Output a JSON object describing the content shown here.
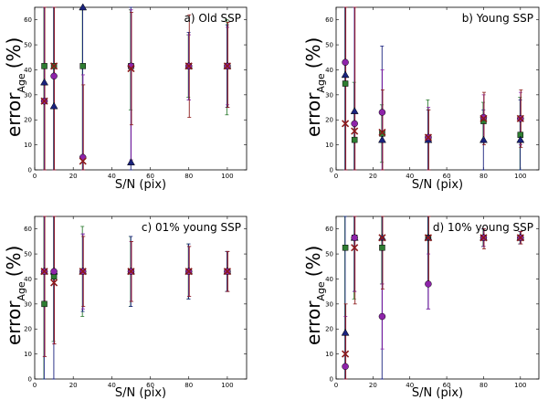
{
  "figure": {
    "x_axis_label": "S/N (pix)",
    "y_axis_label_main": "error",
    "y_axis_label_sub": "Age",
    "y_axis_label_unit": "(%)"
  },
  "chart_data": [
    {
      "type": "scatter",
      "title": "a) Old SSP",
      "xlabel": "S/N (pix)",
      "ylabel": "error_Age (%)",
      "xlim": [
        0,
        110
      ],
      "ylim": [
        0,
        65
      ],
      "xticks": [
        0,
        20,
        40,
        60,
        80,
        100
      ],
      "yticks": [
        0,
        10,
        20,
        30,
        40,
        50,
        60
      ],
      "series": [
        {
          "name": "green squares",
          "marker": "square",
          "color": "#2e7d32",
          "points": [
            [
              5,
              41.5,
              0,
              65
            ],
            [
              10,
              41.5,
              0,
              65
            ],
            [
              25,
              41.5,
              0,
              65
            ],
            [
              50,
              41.5,
              24,
              64
            ],
            [
              80,
              41.5,
              29,
              54
            ],
            [
              100,
              41.5,
              22,
              60
            ]
          ]
        },
        {
          "name": "blue triangles",
          "marker": "triangle",
          "color": "#1a237e",
          "points": [
            [
              5,
              35,
              0,
              65
            ],
            [
              10,
              25.5,
              0,
              65
            ],
            [
              25,
              65,
              0,
              65
            ],
            [
              50,
              3,
              0,
              65
            ],
            [
              80,
              41.5,
              28,
              55
            ],
            [
              100,
              41.5,
              25,
              58
            ]
          ]
        },
        {
          "name": "magenta circles",
          "marker": "circle",
          "color": "#8e24aa",
          "points": [
            [
              5,
              27.5,
              0,
              65
            ],
            [
              10,
              37.5,
              0,
              65
            ],
            [
              25,
              5,
              0,
              38
            ],
            [
              50,
              41.5,
              4,
              64
            ],
            [
              80,
              41.5,
              28,
              54
            ],
            [
              100,
              41.5,
              26,
              57
            ]
          ]
        },
        {
          "name": "red crosses",
          "marker": "x",
          "color": "#8b1a1a",
          "points": [
            [
              5,
              27.5,
              0,
              65
            ],
            [
              10,
              41.5,
              0,
              65
            ],
            [
              25,
              3.5,
              0,
              34
            ],
            [
              50,
              40.5,
              18,
              63
            ],
            [
              80,
              41.5,
              21,
              62
            ],
            [
              100,
              41.5,
              25,
              59
            ]
          ]
        }
      ]
    },
    {
      "type": "scatter",
      "title": "b) Young SSP",
      "xlabel": "S/N (pix)",
      "ylabel": "error_Age (%)",
      "xlim": [
        0,
        110
      ],
      "ylim": [
        0,
        65
      ],
      "xticks": [
        0,
        20,
        40,
        60,
        80,
        100
      ],
      "yticks": [
        0,
        10,
        20,
        30,
        40,
        50,
        60
      ],
      "series": [
        {
          "name": "green squares",
          "marker": "square",
          "color": "#2e7d32",
          "points": [
            [
              5,
              34.5,
              0,
              65
            ],
            [
              10,
              12,
              0,
              35
            ],
            [
              25,
              14.5,
              3,
              26
            ],
            [
              50,
              12.5,
              0,
              28
            ],
            [
              80,
              19.5,
              12,
              27
            ],
            [
              100,
              14,
              0,
              29
            ]
          ]
        },
        {
          "name": "blue triangles",
          "marker": "triangle",
          "color": "#1a237e",
          "points": [
            [
              5,
              38,
              0,
              65
            ],
            [
              10,
              23.5,
              0,
              65
            ],
            [
              25,
              12,
              0,
              49.5
            ],
            [
              50,
              12,
              0,
              24
            ],
            [
              80,
              12,
              0,
              24
            ],
            [
              100,
              12,
              0,
              28
            ]
          ]
        },
        {
          "name": "magenta circles",
          "marker": "circle",
          "color": "#8e24aa",
          "points": [
            [
              5,
              43,
              0,
              65
            ],
            [
              10,
              18.5,
              0,
              65
            ],
            [
              25,
              23,
              0,
              40
            ],
            [
              50,
              13,
              0,
              25
            ],
            [
              80,
              21,
              12,
              30
            ],
            [
              100,
              20.5,
              10,
              31
            ]
          ]
        },
        {
          "name": "red crosses",
          "marker": "x",
          "color": "#8b1a1a",
          "points": [
            [
              5,
              18.5,
              0,
              65
            ],
            [
              10,
              15.5,
              0,
              65
            ],
            [
              25,
              15,
              0,
              32
            ],
            [
              50,
              13,
              0,
              24
            ],
            [
              80,
              20.5,
              10,
              31
            ],
            [
              100,
              20.5,
              9,
              32
            ]
          ]
        }
      ]
    },
    {
      "type": "scatter",
      "title": "c) 01% young SSP",
      "xlabel": "S/N (pix)",
      "ylabel": "error_Age (%)",
      "xlim": [
        0,
        110
      ],
      "ylim": [
        0,
        65
      ],
      "xticks": [
        0,
        20,
        40,
        60,
        80,
        100
      ],
      "yticks": [
        0,
        10,
        20,
        30,
        40,
        50,
        60
      ],
      "series": [
        {
          "name": "green squares",
          "marker": "square",
          "color": "#2e7d32",
          "points": [
            [
              5,
              30,
              0,
              65
            ],
            [
              10,
              41,
              15,
              65
            ],
            [
              25,
              43,
              25,
              61
            ],
            [
              50,
              43,
              29,
              57
            ],
            [
              80,
              43,
              32,
              54
            ],
            [
              100,
              43,
              35,
              51
            ]
          ]
        },
        {
          "name": "blue triangles",
          "marker": "triangle",
          "color": "#1a237e",
          "points": [
            [
              5,
              43,
              0,
              65
            ],
            [
              10,
              43,
              0,
              65
            ],
            [
              25,
              43,
              27,
              58
            ],
            [
              50,
              43,
              29,
              57
            ],
            [
              80,
              43,
              32,
              54
            ],
            [
              100,
              43,
              35,
              51
            ]
          ]
        },
        {
          "name": "magenta circles",
          "marker": "circle",
          "color": "#8e24aa",
          "points": [
            [
              5,
              43,
              9,
              65
            ],
            [
              10,
              43,
              14,
              65
            ],
            [
              25,
              43,
              28,
              58
            ],
            [
              50,
              43,
              31,
              55
            ],
            [
              80,
              43,
              33,
              53
            ],
            [
              100,
              43,
              35,
              51
            ]
          ]
        },
        {
          "name": "red crosses",
          "marker": "x",
          "color": "#8b1a1a",
          "points": [
            [
              5,
              43,
              9,
              65
            ],
            [
              10,
              38.5,
              14,
              65
            ],
            [
              25,
              43,
              29,
              57
            ],
            [
              50,
              43,
              31,
              55
            ],
            [
              80,
              43,
              33,
              53
            ],
            [
              100,
              43,
              35,
              51
            ]
          ]
        }
      ]
    },
    {
      "type": "scatter",
      "title": "d) 10% young SSP",
      "xlabel": "S/N (pix)",
      "ylabel": "error_Age (%)",
      "xlim": [
        0,
        110
      ],
      "ylim": [
        0,
        65
      ],
      "xticks": [
        0,
        20,
        40,
        60,
        80,
        100
      ],
      "yticks": [
        0,
        10,
        20,
        30,
        40,
        50,
        60
      ],
      "series": [
        {
          "name": "green squares",
          "marker": "square",
          "color": "#2e7d32",
          "points": [
            [
              5,
              52.5,
              0,
              65
            ],
            [
              10,
              56.5,
              32,
              65
            ],
            [
              25,
              52.5,
              38,
              65
            ],
            [
              50,
              56.5,
              38,
              65
            ],
            [
              80,
              56.5,
              53,
              60
            ],
            [
              100,
              56.5,
              54,
              59
            ]
          ]
        },
        {
          "name": "blue triangles",
          "marker": "triangle",
          "color": "#1a237e",
          "points": [
            [
              5,
              18.5,
              0,
              65
            ],
            [
              10,
              56.5,
              35,
              65
            ],
            [
              25,
              56.5,
              0,
              65
            ],
            [
              50,
              56.5,
              28,
              65
            ],
            [
              80,
              56.5,
              53,
              60
            ],
            [
              100,
              56.5,
              54,
              59
            ]
          ]
        },
        {
          "name": "magenta circles",
          "marker": "circle",
          "color": "#8e24aa",
          "points": [
            [
              5,
              5,
              0,
              25
            ],
            [
              10,
              56.5,
              35,
              65
            ],
            [
              25,
              25,
              12,
              38
            ],
            [
              50,
              38,
              28,
              50
            ],
            [
              80,
              56.5,
              53,
              60
            ],
            [
              100,
              56.5,
              54,
              59
            ]
          ]
        },
        {
          "name": "red crosses",
          "marker": "x",
          "color": "#8b1a1a",
          "points": [
            [
              5,
              10,
              0,
              30
            ],
            [
              10,
              52.5,
              30,
              65
            ],
            [
              25,
              56.5,
              36,
              65
            ],
            [
              50,
              56.5,
              38,
              65
            ],
            [
              80,
              56.5,
              52,
              60
            ],
            [
              100,
              56.5,
              54,
              59
            ]
          ]
        }
      ]
    }
  ]
}
